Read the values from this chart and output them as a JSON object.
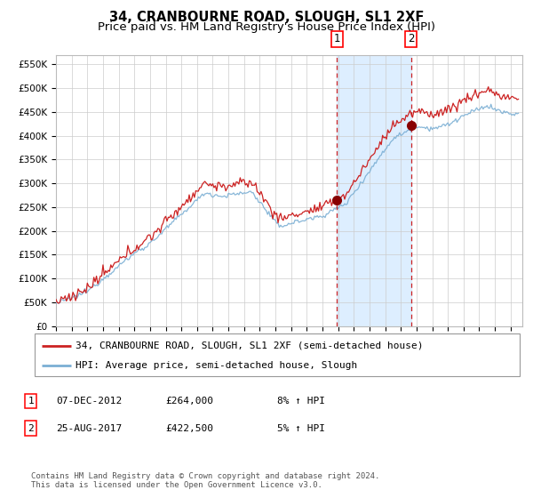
{
  "title": "34, CRANBOURNE ROAD, SLOUGH, SL1 2XF",
  "subtitle": "Price paid vs. HM Land Registry's House Price Index (HPI)",
  "ylim": [
    0,
    570000
  ],
  "yticks": [
    0,
    50000,
    100000,
    150000,
    200000,
    250000,
    300000,
    350000,
    400000,
    450000,
    500000,
    550000
  ],
  "sale1_date_num": 2012.92,
  "sale1_price": 264000,
  "sale2_date_num": 2017.64,
  "sale2_price": 422500,
  "hpi_color": "#7bafd4",
  "price_color": "#cc2222",
  "dot_color": "#880000",
  "shade_color": "#ddeeff",
  "vline_color": "#cc2222",
  "grid_color": "#cccccc",
  "legend_label_price": "34, CRANBOURNE ROAD, SLOUGH, SL1 2XF (semi-detached house)",
  "legend_label_hpi": "HPI: Average price, semi-detached house, Slough",
  "table_rows": [
    [
      "1",
      "07-DEC-2012",
      "£264,000",
      "8% ↑ HPI"
    ],
    [
      "2",
      "25-AUG-2017",
      "£422,500",
      "5% ↑ HPI"
    ]
  ],
  "footnote": "Contains HM Land Registry data © Crown copyright and database right 2024.\nThis data is licensed under the Open Government Licence v3.0.",
  "title_fontsize": 10.5,
  "subtitle_fontsize": 9.5,
  "tick_fontsize": 7.5,
  "legend_fontsize": 8,
  "table_fontsize": 8,
  "footnote_fontsize": 6.5
}
